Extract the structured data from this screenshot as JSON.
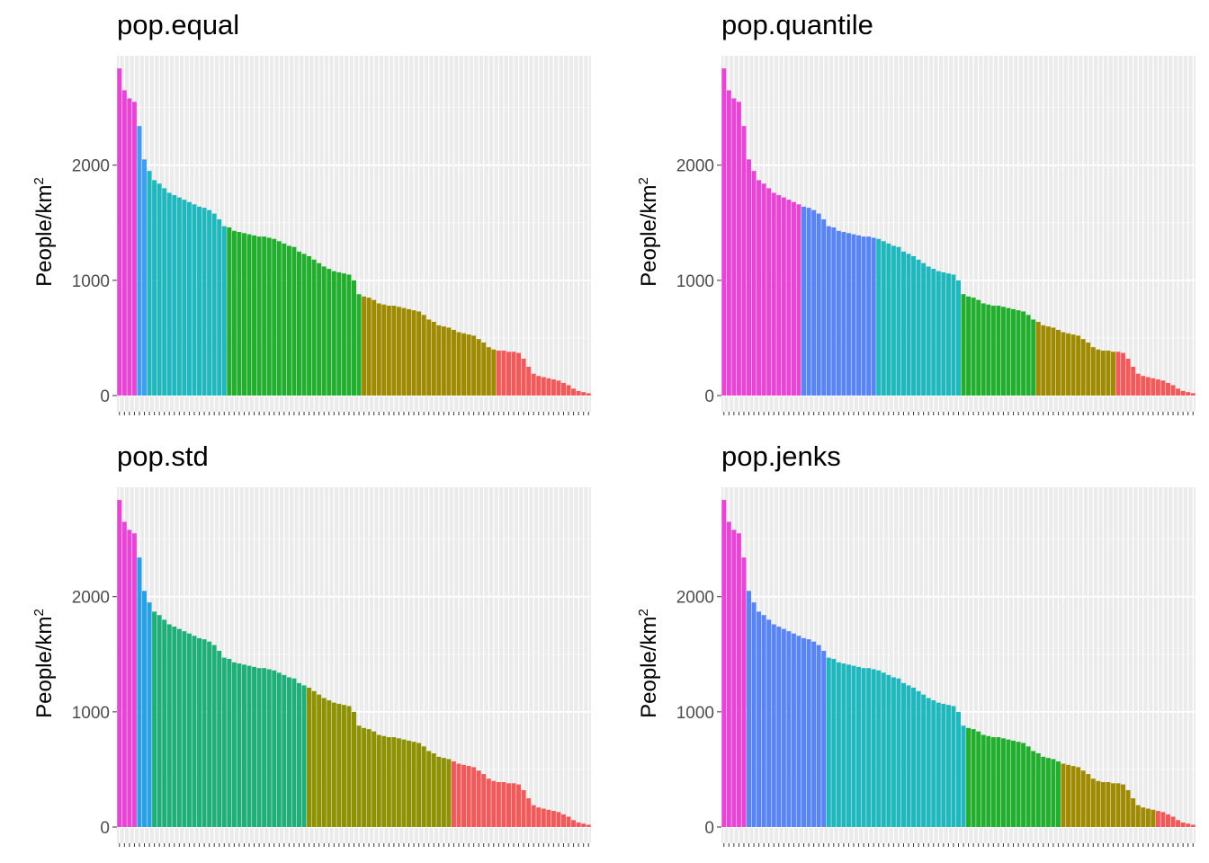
{
  "chart_data": [
    {
      "type": "bar",
      "title": "pop.equal",
      "ylabel": "People/km",
      "ylabel_sup": "2",
      "ylim": [
        0,
        2950
      ],
      "yticks": [
        0,
        1000,
        2000
      ],
      "grid": true,
      "legend": "none",
      "n_bars": 95,
      "values": [
        2840,
        2650,
        2580,
        2550,
        2340,
        2050,
        1950,
        1870,
        1840,
        1800,
        1760,
        1740,
        1720,
        1700,
        1680,
        1660,
        1640,
        1630,
        1610,
        1580,
        1530,
        1470,
        1460,
        1430,
        1420,
        1410,
        1400,
        1390,
        1380,
        1380,
        1370,
        1360,
        1340,
        1320,
        1300,
        1290,
        1250,
        1230,
        1210,
        1180,
        1150,
        1120,
        1100,
        1080,
        1070,
        1060,
        1050,
        1000,
        880,
        860,
        850,
        830,
        800,
        790,
        780,
        780,
        770,
        760,
        750,
        740,
        730,
        700,
        660,
        640,
        610,
        600,
        590,
        570,
        550,
        540,
        530,
        520,
        490,
        460,
        420,
        400,
        390,
        390,
        380,
        380,
        370,
        320,
        250,
        190,
        170,
        160,
        150,
        140,
        130,
        110,
        90,
        60,
        40,
        30,
        20
      ],
      "groups": [
        {
          "count": 4,
          "color": "#E844D6"
        },
        {
          "count": 2,
          "color": "#3F9EEF"
        },
        {
          "count": 16,
          "color": "#1FB8BE"
        },
        {
          "count": 27,
          "color": "#22AF2E"
        },
        {
          "count": 27,
          "color": "#A08B00"
        },
        {
          "count": 19,
          "color": "#F05A5A"
        }
      ]
    },
    {
      "type": "bar",
      "title": "pop.quantile",
      "ylabel": "People/km",
      "ylabel_sup": "2",
      "ylim": [
        0,
        2950
      ],
      "yticks": [
        0,
        1000,
        2000
      ],
      "grid": true,
      "legend": "none",
      "n_bars": 95,
      "values": [
        2840,
        2650,
        2580,
        2550,
        2340,
        2050,
        1950,
        1870,
        1840,
        1800,
        1760,
        1740,
        1720,
        1700,
        1680,
        1660,
        1640,
        1630,
        1610,
        1580,
        1530,
        1470,
        1460,
        1430,
        1420,
        1410,
        1400,
        1390,
        1380,
        1380,
        1370,
        1360,
        1340,
        1320,
        1300,
        1290,
        1250,
        1230,
        1210,
        1180,
        1150,
        1120,
        1100,
        1080,
        1070,
        1060,
        1050,
        1000,
        880,
        860,
        850,
        830,
        800,
        790,
        780,
        780,
        770,
        760,
        750,
        740,
        730,
        700,
        660,
        640,
        610,
        600,
        590,
        570,
        550,
        540,
        530,
        520,
        490,
        460,
        420,
        400,
        390,
        390,
        380,
        380,
        370,
        320,
        250,
        190,
        170,
        160,
        150,
        140,
        130,
        110,
        90,
        60,
        40,
        30,
        20
      ],
      "groups": [
        {
          "count": 16,
          "color": "#E844D6"
        },
        {
          "count": 15,
          "color": "#5885F3"
        },
        {
          "count": 17,
          "color": "#1FB8BE"
        },
        {
          "count": 15,
          "color": "#22AF2E"
        },
        {
          "count": 16,
          "color": "#A08B00"
        },
        {
          "count": 16,
          "color": "#F05A5A"
        }
      ]
    },
    {
      "type": "bar",
      "title": "pop.std",
      "ylabel": "People/km",
      "ylabel_sup": "2",
      "ylim": [
        0,
        2950
      ],
      "yticks": [
        0,
        1000,
        2000
      ],
      "grid": true,
      "legend": "none",
      "n_bars": 95,
      "values": [
        2840,
        2650,
        2580,
        2550,
        2340,
        2050,
        1950,
        1870,
        1840,
        1800,
        1760,
        1740,
        1720,
        1700,
        1680,
        1660,
        1640,
        1630,
        1610,
        1580,
        1530,
        1470,
        1460,
        1430,
        1420,
        1410,
        1400,
        1390,
        1380,
        1380,
        1370,
        1360,
        1340,
        1320,
        1300,
        1290,
        1250,
        1230,
        1210,
        1180,
        1150,
        1120,
        1100,
        1080,
        1070,
        1060,
        1050,
        1000,
        880,
        860,
        850,
        830,
        800,
        790,
        780,
        780,
        770,
        760,
        750,
        740,
        730,
        700,
        660,
        640,
        610,
        600,
        590,
        570,
        550,
        540,
        530,
        520,
        490,
        460,
        420,
        400,
        390,
        390,
        380,
        380,
        370,
        320,
        250,
        190,
        170,
        160,
        150,
        140,
        130,
        110,
        90,
        60,
        40,
        30,
        20
      ],
      "groups": [
        {
          "count": 4,
          "color": "#E844D6"
        },
        {
          "count": 3,
          "color": "#27A1E3"
        },
        {
          "count": 31,
          "color": "#1FB07A"
        },
        {
          "count": 29,
          "color": "#8E9100"
        },
        {
          "count": 28,
          "color": "#F05A5A"
        }
      ]
    },
    {
      "type": "bar",
      "title": "pop.jenks",
      "ylabel": "People/km",
      "ylabel_sup": "2",
      "ylim": [
        0,
        2950
      ],
      "yticks": [
        0,
        1000,
        2000
      ],
      "grid": true,
      "legend": "none",
      "n_bars": 95,
      "values": [
        2840,
        2650,
        2580,
        2550,
        2340,
        2050,
        1950,
        1870,
        1840,
        1800,
        1760,
        1740,
        1720,
        1700,
        1680,
        1660,
        1640,
        1630,
        1610,
        1580,
        1530,
        1470,
        1460,
        1430,
        1420,
        1410,
        1400,
        1390,
        1380,
        1380,
        1370,
        1360,
        1340,
        1320,
        1300,
        1290,
        1250,
        1230,
        1210,
        1180,
        1150,
        1120,
        1100,
        1080,
        1070,
        1060,
        1050,
        1000,
        880,
        860,
        850,
        830,
        800,
        790,
        780,
        780,
        770,
        760,
        750,
        740,
        730,
        700,
        660,
        640,
        610,
        600,
        590,
        570,
        550,
        540,
        530,
        520,
        490,
        460,
        420,
        400,
        390,
        390,
        380,
        380,
        370,
        320,
        250,
        190,
        170,
        160,
        150,
        140,
        130,
        110,
        90,
        60,
        40,
        30,
        20
      ],
      "groups": [
        {
          "count": 5,
          "color": "#E844D6"
        },
        {
          "count": 16,
          "color": "#5885F3"
        },
        {
          "count": 28,
          "color": "#1FB8BE"
        },
        {
          "count": 19,
          "color": "#22AF2E"
        },
        {
          "count": 19,
          "color": "#A08B00"
        },
        {
          "count": 8,
          "color": "#F05A5A"
        }
      ]
    }
  ]
}
